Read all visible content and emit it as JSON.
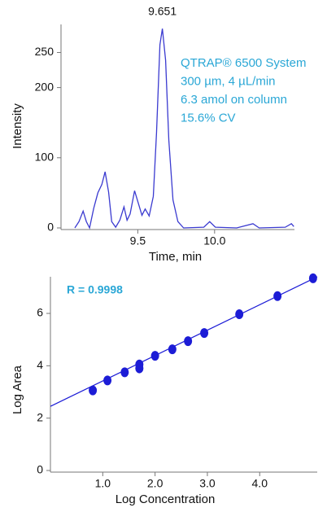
{
  "chart_data": [
    {
      "type": "line",
      "peak_label": "9.651",
      "annotations": [
        "QTRAP® 6500 System",
        "300 µm, 4 µL/min",
        "6.3 amol on column",
        "15.6% CV"
      ],
      "annotation_color": "#2aa7d6",
      "x_label": "Time, min",
      "y_label": "Intensity",
      "color": "#3a3ad0",
      "x": [
        9.09,
        9.117,
        9.144,
        9.165,
        9.186,
        9.213,
        9.24,
        9.266,
        9.287,
        9.31,
        9.33,
        9.356,
        9.383,
        9.41,
        9.43,
        9.45,
        9.479,
        9.505,
        9.527,
        9.548,
        9.574,
        9.601,
        9.622,
        9.644,
        9.66,
        9.681,
        9.702,
        9.729,
        9.761,
        9.798,
        9.93,
        9.968,
        10.005,
        10.144,
        10.25,
        10.29,
        10.46,
        10.5,
        10.516
      ],
      "values": [
        0,
        9,
        24,
        9,
        0,
        28,
        50,
        62,
        80,
        51,
        9,
        1,
        11,
        30,
        11,
        20,
        53,
        34,
        18,
        27,
        17,
        45,
        136,
        261,
        284,
        239,
        125,
        40,
        9,
        0,
        1,
        9,
        1,
        0,
        6,
        0,
        1,
        6,
        2
      ],
      "xlim": [
        9.0,
        10.52
      ],
      "xticks": [
        9.5,
        {
          "value": 10,
          "label": "10.0"
        }
      ],
      "ylim": [
        0,
        290
      ],
      "yticks": [
        0,
        100,
        200,
        250
      ]
    },
    {
      "type": "scatter",
      "annotation": "R = 0.9998",
      "annotation_color": "#2aa7d6",
      "x_label": "Log Concentration",
      "y_label": "Log Area",
      "color": "#1c1cd6",
      "x": [
        0.81,
        1.09,
        1.42,
        1.7,
        1.7,
        2.0,
        2.33,
        2.63,
        2.94,
        3.61,
        4.34,
        5.02
      ],
      "values": [
        3.06,
        3.44,
        3.75,
        3.9,
        4.05,
        4.38,
        4.63,
        4.94,
        5.25,
        5.97,
        6.66,
        7.34
      ],
      "trendline": {
        "slope": 0.97,
        "intercept": 2.45
      },
      "xlim": [
        0,
        5.1
      ],
      "xticks": [
        {
          "value": 1,
          "label": "1.0"
        },
        {
          "value": 2,
          "label": "2.0"
        },
        {
          "value": 3,
          "label": "3.0"
        },
        {
          "value": 4,
          "label": "4.0"
        }
      ],
      "ylim": [
        0,
        7.4
      ],
      "yticks": [
        0,
        2,
        4,
        6
      ]
    }
  ]
}
